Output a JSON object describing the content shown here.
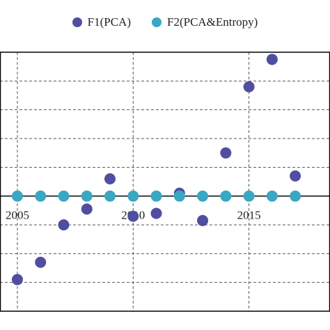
{
  "chart_data": {
    "type": "scatter",
    "title": "",
    "xlabel": "",
    "ylabel": "",
    "xlim": [
      2004.25,
      2018.5
    ],
    "ylim": [
      -4,
      5
    ],
    "xticks": [
      2005,
      2010,
      2015
    ],
    "xtick_labels": [
      "2005",
      "2010",
      "2015"
    ],
    "grid": "dashed",
    "legend_position": "top",
    "series": [
      {
        "name": "F1(PCA)",
        "color": "#4f4ea0",
        "points": [
          {
            "x": 2004,
            "y": -3.7
          },
          {
            "x": 2005,
            "y": -2.9
          },
          {
            "x": 2006,
            "y": -2.3
          },
          {
            "x": 2007,
            "y": -1.0
          },
          {
            "x": 2008,
            "y": -0.45
          },
          {
            "x": 2009,
            "y": 0.6
          },
          {
            "x": 2010,
            "y": -0.7
          },
          {
            "x": 2011,
            "y": -0.6
          },
          {
            "x": 2012,
            "y": 0.1
          },
          {
            "x": 2013,
            "y": -0.85
          },
          {
            "x": 2014,
            "y": 1.5
          },
          {
            "x": 2015,
            "y": 3.8
          },
          {
            "x": 2016,
            "y": 4.75
          },
          {
            "x": 2017,
            "y": 0.7
          }
        ]
      },
      {
        "name": "F2(PCA&Entropy)",
        "color": "#3aa7c4",
        "points": [
          {
            "x": 2004,
            "y": 0
          },
          {
            "x": 2005,
            "y": 0
          },
          {
            "x": 2006,
            "y": 0
          },
          {
            "x": 2007,
            "y": 0
          },
          {
            "x": 2008,
            "y": 0
          },
          {
            "x": 2009,
            "y": 0
          },
          {
            "x": 2010,
            "y": 0
          },
          {
            "x": 2011,
            "y": 0
          },
          {
            "x": 2012,
            "y": 0
          },
          {
            "x": 2013,
            "y": 0
          },
          {
            "x": 2014,
            "y": 0
          },
          {
            "x": 2015,
            "y": 0
          },
          {
            "x": 2016,
            "y": 0
          },
          {
            "x": 2017,
            "y": 0
          }
        ]
      }
    ]
  }
}
